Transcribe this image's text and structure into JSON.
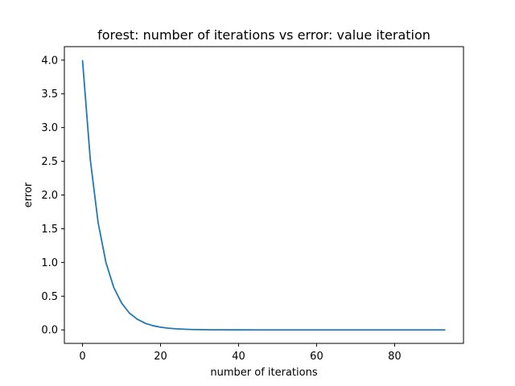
{
  "chart_data": {
    "type": "line",
    "title": "forest: number of iterations vs error: value iteration",
    "xlabel": "number of iterations",
    "ylabel": "error",
    "xlim": [
      -4.65,
      97.65
    ],
    "ylim": [
      -0.2,
      4.2
    ],
    "x_ticks": [
      0,
      20,
      40,
      60,
      80
    ],
    "x_tick_labels": [
      "0",
      "20",
      "40",
      "60",
      "80"
    ],
    "y_ticks": [
      0.0,
      0.5,
      1.0,
      1.5,
      2.0,
      2.5,
      3.0,
      3.5,
      4.0
    ],
    "y_tick_labels": [
      "0.0",
      "0.5",
      "1.0",
      "1.5",
      "2.0",
      "2.5",
      "3.0",
      "3.5",
      "4.0"
    ],
    "grid": false,
    "line_color": "#1f77b4",
    "series": [
      {
        "x": [
          0,
          2,
          4,
          6,
          8,
          10,
          12,
          14,
          16,
          18,
          20,
          22,
          24,
          26,
          28,
          30,
          32,
          34,
          36,
          38,
          40,
          45,
          50,
          55,
          60,
          65,
          70,
          75,
          80,
          85,
          90,
          93
        ],
        "y": [
          4.0,
          2.52,
          1.59,
          1.0,
          0.63,
          0.4,
          0.25,
          0.16,
          0.1,
          0.063,
          0.04,
          0.025,
          0.016,
          0.01,
          0.006,
          0.004,
          0.0025,
          0.0016,
          0.001,
          0.0006,
          0.0004,
          0.0001,
          0.0,
          0.0,
          0.0,
          0.0,
          0.0,
          0.0,
          0.0,
          0.0,
          0.0,
          0.0
        ]
      }
    ]
  }
}
